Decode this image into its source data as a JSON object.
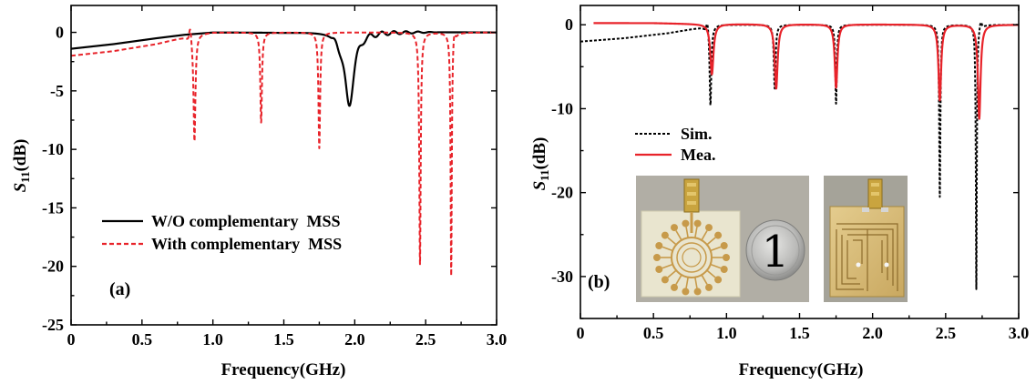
{
  "chart_data": [
    {
      "type": "line",
      "panel_label": "(a)",
      "xlabel": "Frequency(GHz)",
      "ylabel_main": "S",
      "ylabel_sub": "11",
      "ylabel_unit": "(dB)",
      "xlim": [
        0,
        3.0
      ],
      "ylim": [
        -25,
        2.3
      ],
      "x_ticks": [
        0,
        0.5,
        1.0,
        1.5,
        2.0,
        2.5,
        3.0
      ],
      "x_tick_labels": [
        "0",
        "0.5",
        "1.0",
        "1.5",
        "2.0",
        "2.5",
        "3.0"
      ],
      "y_ticks": [
        0,
        -5,
        -10,
        -15,
        -20,
        -25
      ],
      "y_tick_labels": [
        "0",
        "-5",
        "-10",
        "-15",
        "-20",
        "-25"
      ],
      "grid": false,
      "legend_position": "lower-center",
      "series": [
        {
          "name": "W/O complementary  MSS",
          "color": "#000000",
          "style": "solid",
          "baseline": {
            "x": [
              0,
              0.3,
              0.6,
              0.8,
              1.0,
              1.5,
              1.8,
              3.0
            ],
            "y": [
              -1.4,
              -1.0,
              -0.5,
              -0.2,
              0.0,
              0.0,
              0.1,
              0.0
            ]
          },
          "dips": [
            {
              "x": 1.96,
              "depth": -6.2,
              "width": 0.04
            }
          ],
          "ripple": {
            "from": 1.83,
            "to": 2.6,
            "amplitude": 0.35
          }
        },
        {
          "name": "With complementary  MSS",
          "color": "#e8232a",
          "style": "dashed",
          "baseline": {
            "x": [
              0,
              0.3,
              0.6,
              0.8,
              0.9,
              1.0,
              3.0
            ],
            "y": [
              -2.0,
              -1.6,
              -1.0,
              -0.4,
              -0.1,
              0.0,
              0.0
            ]
          },
          "dips": [
            {
              "x": 0.87,
              "depth": -9.3,
              "width": 0.008
            },
            {
              "x": 1.34,
              "depth": -7.7,
              "width": 0.007
            },
            {
              "x": 1.75,
              "depth": -9.9,
              "width": 0.007
            },
            {
              "x": 2.46,
              "depth": -19.8,
              "width": 0.006
            },
            {
              "x": 2.68,
              "depth": -20.8,
              "width": 0.005
            }
          ],
          "spikes": [
            {
              "x": 0.84,
              "height": 1.1
            },
            {
              "x": 2.7,
              "height": 0.8
            }
          ]
        }
      ]
    },
    {
      "type": "line",
      "panel_label": "(b)",
      "xlabel": "Frequency(GHz)",
      "ylabel_main": "S",
      "ylabel_sub": "11",
      "ylabel_unit": "(dB)",
      "xlim": [
        0,
        3.0
      ],
      "ylim": [
        -35,
        2.3
      ],
      "x_ticks": [
        0,
        0.5,
        1.0,
        1.5,
        2.0,
        2.5,
        3.0
      ],
      "x_tick_labels": [
        "0",
        "0.5",
        "1.0",
        "1.5",
        "2.0",
        "2.5",
        "3.0"
      ],
      "y_ticks": [
        0,
        -10,
        -20,
        -30
      ],
      "y_tick_labels": [
        "0",
        "-10",
        "-20",
        "-30"
      ],
      "grid": false,
      "legend_position": "upper-left",
      "series": [
        {
          "name": "Sim.",
          "color": "#000000",
          "style": "dashed",
          "baseline": {
            "x": [
              0,
              0.3,
              0.6,
              0.8,
              0.95,
              3.0
            ],
            "y": [
              -2.0,
              -1.6,
              -1.0,
              -0.4,
              0.0,
              0.0
            ]
          },
          "dips": [
            {
              "x": 0.89,
              "depth": -9.6,
              "width": 0.007
            },
            {
              "x": 1.33,
              "depth": -7.6,
              "width": 0.007
            },
            {
              "x": 1.75,
              "depth": -9.4,
              "width": 0.006
            },
            {
              "x": 2.46,
              "depth": -20.5,
              "width": 0.005
            },
            {
              "x": 2.71,
              "depth": -31.5,
              "width": 0.004
            }
          ],
          "spikes": [
            {
              "x": 0.87,
              "height": 1.2
            },
            {
              "x": 2.74,
              "height": 0.8
            }
          ]
        },
        {
          "name": "Mea.",
          "color": "#e8232a",
          "style": "solid",
          "x_start": 0.09,
          "baseline": {
            "x": [
              0.09,
              0.5,
              0.8,
              3.0
            ],
            "y": [
              0.2,
              0.2,
              0.1,
              0.0
            ]
          },
          "dips": [
            {
              "x": 0.9,
              "depth": -5.9,
              "width": 0.013
            },
            {
              "x": 1.34,
              "depth": -7.6,
              "width": 0.012
            },
            {
              "x": 1.75,
              "depth": -7.5,
              "width": 0.011
            },
            {
              "x": 2.46,
              "depth": -9.0,
              "width": 0.011
            },
            {
              "x": 2.73,
              "depth": -11.2,
              "width": 0.011
            }
          ]
        }
      ],
      "inset_photos": [
        {
          "name": "antenna-front-photo",
          "coin_digit": "1"
        },
        {
          "name": "antenna-back-photo"
        }
      ]
    }
  ]
}
